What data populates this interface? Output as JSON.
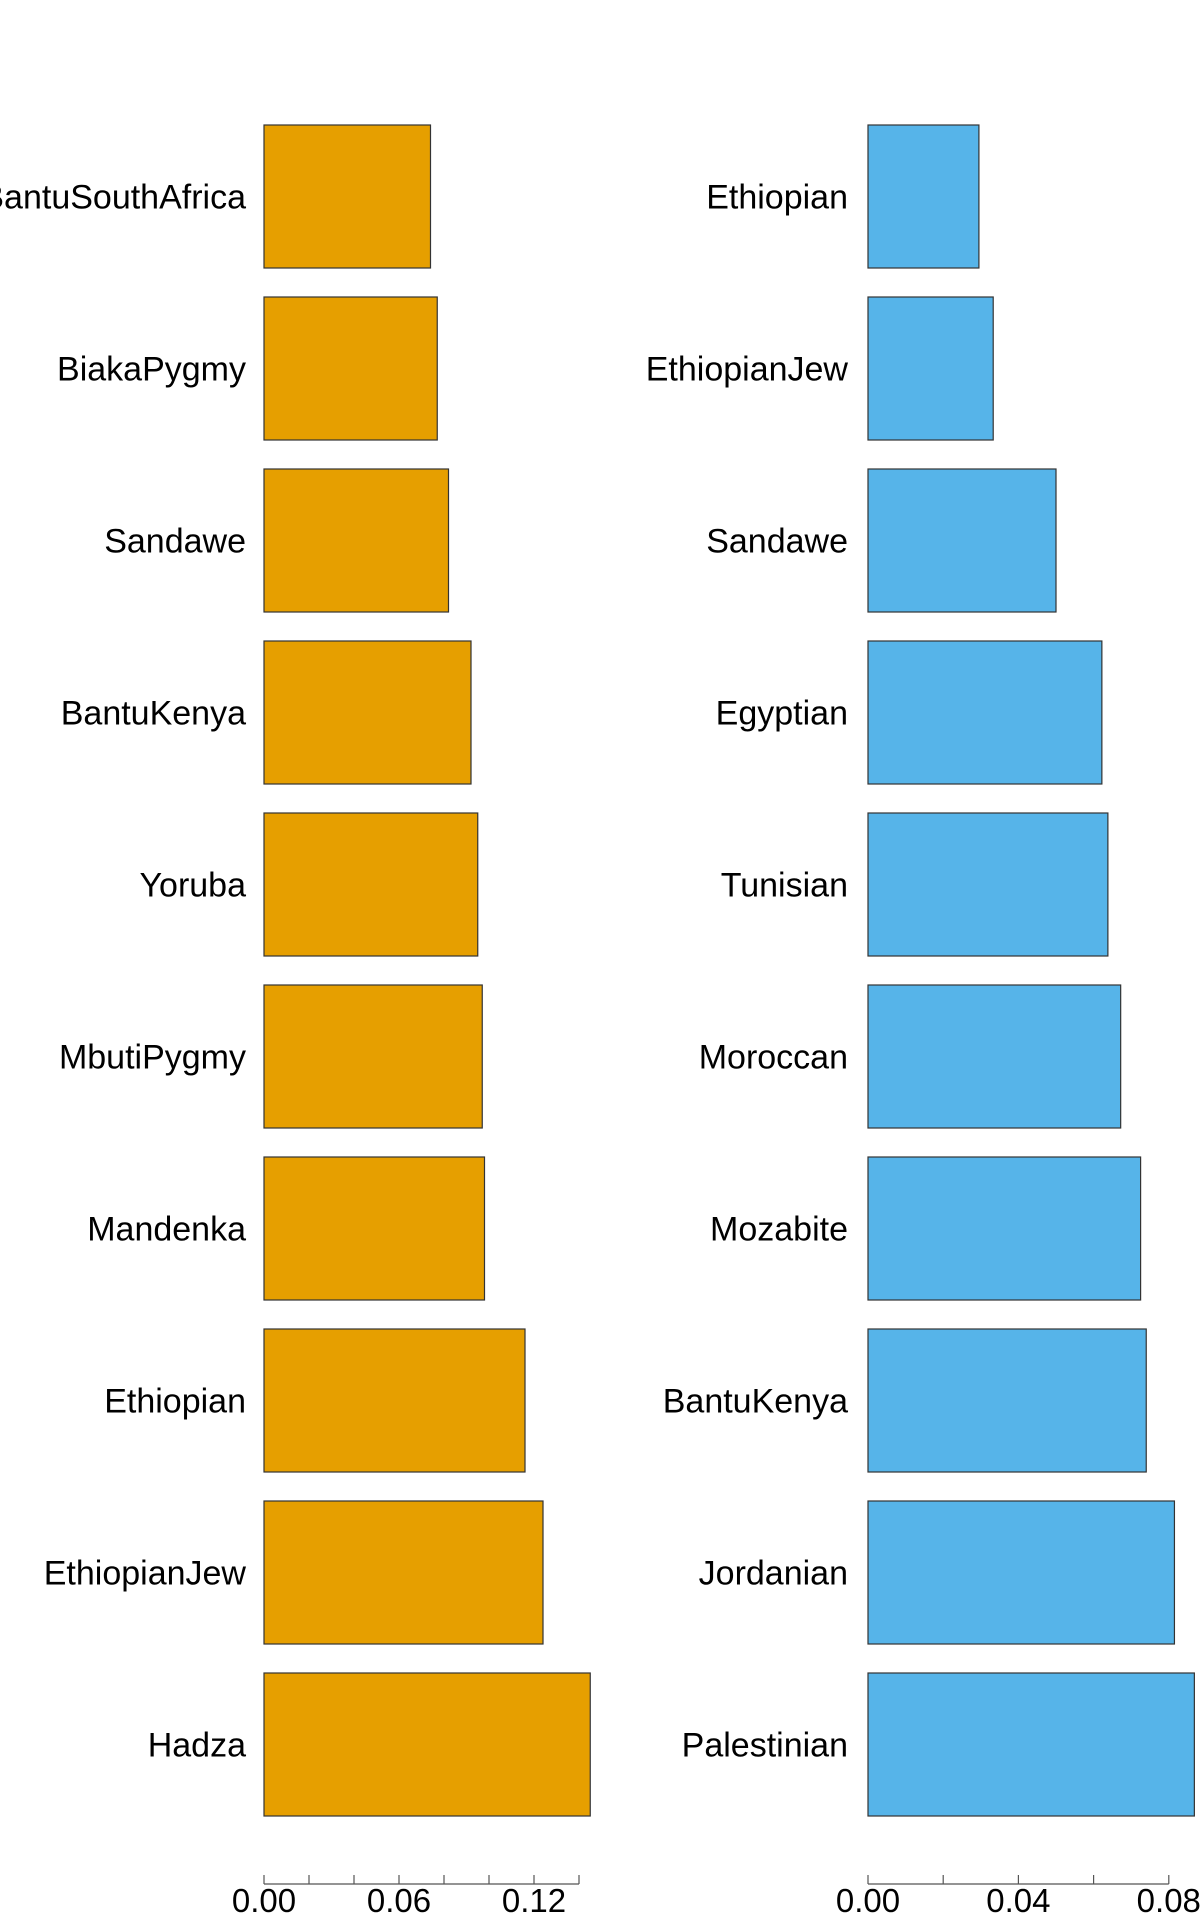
{
  "chart_data": [
    {
      "type": "bar",
      "orientation": "horizontal",
      "color": "#E69F00",
      "categories": [
        "BantuSouthAfrica",
        "BiakaPygmy",
        "Sandawe",
        "BantuKenya",
        "Yoruba",
        "MbutiPygmy",
        "Mandenka",
        "Ethiopian",
        "EthiopianJew",
        "Hadza"
      ],
      "values": [
        0.074,
        0.077,
        0.082,
        0.092,
        0.095,
        0.097,
        0.098,
        0.116,
        0.124,
        0.145
      ],
      "xlim": [
        0,
        0.14
      ],
      "xticks": [
        0.0,
        0.02,
        0.04,
        0.06,
        0.08,
        0.1,
        0.12,
        0.14
      ],
      "xtick_labels": [
        "0.00",
        "",
        "",
        "0.06",
        "",
        "",
        "0.12",
        ""
      ],
      "title": "",
      "xlabel": "",
      "ylabel": ""
    },
    {
      "type": "bar",
      "orientation": "horizontal",
      "color": "#56B4E9",
      "categories": [
        "Ethiopian",
        "EthiopianJew",
        "Sandawe",
        "Egyptian",
        "Tunisian",
        "Moroccan",
        "Mozabite",
        "BantuKenya",
        "Jordanian",
        "Palestinian"
      ],
      "values": [
        0.0295,
        0.0333,
        0.05,
        0.0622,
        0.0638,
        0.0672,
        0.0725,
        0.074,
        0.0815,
        0.0868
      ],
      "xlim": [
        0,
        0.08
      ],
      "xticks": [
        0.0,
        0.02,
        0.04,
        0.06,
        0.08
      ],
      "xtick_labels": [
        "0.00",
        "",
        "0.04",
        "",
        "0.08"
      ],
      "title": "",
      "xlabel": "",
      "ylabel": ""
    }
  ]
}
